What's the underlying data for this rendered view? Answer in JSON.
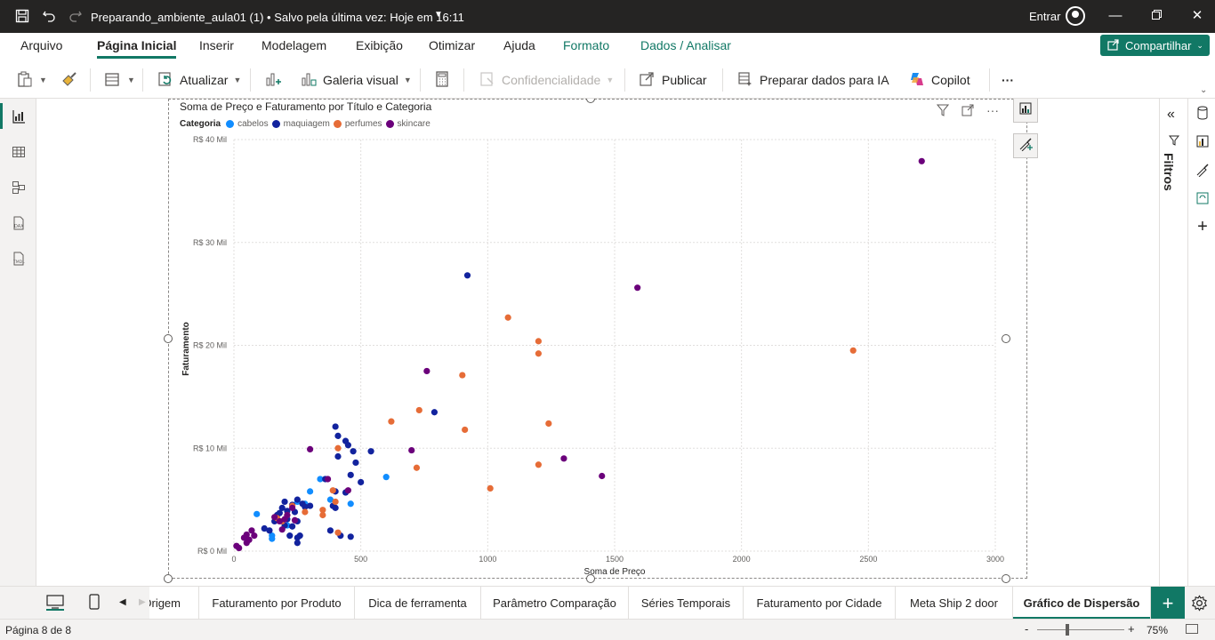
{
  "titlebar": {
    "doc_title": "Preparando_ambiente_aula01 (1) • Salvo pela última vez: Hoje em 16:11",
    "signin": "Entrar"
  },
  "menu": {
    "tabs": [
      "Arquivo",
      "Página Inicial",
      "Inserir",
      "Modelagem",
      "Exibição",
      "Otimizar",
      "Ajuda",
      "Formato",
      "Dados / Analisar"
    ],
    "active": "Página Inicial",
    "share": "Compartilhar"
  },
  "ribbon": {
    "refresh": "Atualizar",
    "visual_gallery": "Galeria visual",
    "sensitivity": "Confidencialidade",
    "publish": "Publicar",
    "prepare_ai": "Preparar dados para IA",
    "copilot": "Copilot",
    "more": "···"
  },
  "visual": {
    "title": "Soma de Preço e Faturamento por Título e Categoria",
    "legend_title": "Categoria"
  },
  "chart_data": {
    "type": "scatter",
    "title": "Soma de Preço e Faturamento por Título e Categoria",
    "xlabel": "Soma de Preço",
    "ylabel": "Faturamento",
    "xlim": [
      0,
      3000
    ],
    "ylim": [
      0,
      40
    ],
    "x_ticks": [
      0,
      500,
      1000,
      1500,
      2000,
      2500,
      3000
    ],
    "x_tick_labels": [
      "0",
      "500",
      "1000",
      "1500",
      "2000",
      "2500",
      "3000"
    ],
    "y_ticks": [
      0,
      10,
      20,
      30,
      40
    ],
    "y_tick_labels": [
      "R$ 0 Mil",
      "R$ 10 Mil",
      "R$ 20 Mil",
      "R$ 30 Mil",
      "R$ 40 Mil"
    ],
    "grid": true,
    "legend_position": "top-left",
    "series": [
      {
        "name": "cabelos",
        "color": "#118dff",
        "points": [
          [
            90,
            3.6
          ],
          [
            150,
            1.5
          ],
          [
            150,
            1.2
          ],
          [
            210,
            2.5
          ],
          [
            250,
            4.8
          ],
          [
            280,
            4.6
          ],
          [
            300,
            5.8
          ],
          [
            340,
            7
          ],
          [
            380,
            5
          ],
          [
            460,
            4.6
          ],
          [
            600,
            7.2
          ]
        ]
      },
      {
        "name": "maquiagem",
        "color": "#12239e",
        "points": [
          [
            120,
            2.2
          ],
          [
            140,
            2
          ],
          [
            160,
            2.9
          ],
          [
            170,
            3.5
          ],
          [
            180,
            3.7
          ],
          [
            190,
            4.2
          ],
          [
            200,
            4.8
          ],
          [
            200,
            2.5
          ],
          [
            210,
            3.9
          ],
          [
            210,
            3.1
          ],
          [
            220,
            1.5
          ],
          [
            230,
            4.5
          ],
          [
            230,
            2.4
          ],
          [
            240,
            3.8
          ],
          [
            250,
            5
          ],
          [
            250,
            2.9
          ],
          [
            250,
            1.3
          ],
          [
            250,
            0.8
          ],
          [
            260,
            1.5
          ],
          [
            270,
            4.6
          ],
          [
            280,
            4.3
          ],
          [
            300,
            4.4
          ],
          [
            360,
            7
          ],
          [
            380,
            2
          ],
          [
            390,
            4.4
          ],
          [
            400,
            12.1
          ],
          [
            400,
            5.8
          ],
          [
            400,
            4.2
          ],
          [
            410,
            11.2
          ],
          [
            410,
            9.2
          ],
          [
            420,
            1.5
          ],
          [
            440,
            5.7
          ],
          [
            440,
            10.7
          ],
          [
            450,
            10.3
          ],
          [
            460,
            1.4
          ],
          [
            460,
            7.4
          ],
          [
            470,
            9.7
          ],
          [
            480,
            8.6
          ],
          [
            500,
            6.7
          ],
          [
            540,
            9.7
          ],
          [
            790,
            13.5
          ],
          [
            920,
            26.8
          ]
        ]
      },
      {
        "name": "perfumes",
        "color": "#e66c37",
        "points": [
          [
            170,
            3.2
          ],
          [
            190,
            2.9
          ],
          [
            210,
            3.5
          ],
          [
            230,
            4.4
          ],
          [
            280,
            3.8
          ],
          [
            350,
            4
          ],
          [
            350,
            3.5
          ],
          [
            390,
            5.9
          ],
          [
            400,
            4.8
          ],
          [
            410,
            1.8
          ],
          [
            410,
            10
          ],
          [
            620,
            12.6
          ],
          [
            720,
            8.1
          ],
          [
            730,
            13.7
          ],
          [
            900,
            17.1
          ],
          [
            910,
            11.8
          ],
          [
            1010,
            6.1
          ],
          [
            1080,
            22.7
          ],
          [
            1200,
            8.4
          ],
          [
            1200,
            19.2
          ],
          [
            1200,
            20.4
          ],
          [
            1240,
            12.4
          ],
          [
            2440,
            19.5
          ]
        ]
      },
      {
        "name": "skincare",
        "color": "#6b007b",
        "points": [
          [
            10,
            0.5
          ],
          [
            20,
            0.3
          ],
          [
            40,
            1.3
          ],
          [
            50,
            1.6
          ],
          [
            50,
            0.8
          ],
          [
            60,
            1.1
          ],
          [
            70,
            2
          ],
          [
            80,
            1.5
          ],
          [
            160,
            3.3
          ],
          [
            180,
            2.9
          ],
          [
            190,
            2.1
          ],
          [
            200,
            3.1
          ],
          [
            210,
            3.5
          ],
          [
            230,
            4.2
          ],
          [
            240,
            3
          ],
          [
            300,
            9.9
          ],
          [
            370,
            7
          ],
          [
            450,
            5.9
          ],
          [
            700,
            9.8
          ],
          [
            760,
            17.5
          ],
          [
            1300,
            9
          ],
          [
            1450,
            7.3
          ],
          [
            1590,
            25.6
          ],
          [
            2710,
            37.9
          ]
        ]
      }
    ]
  },
  "page_tabs": {
    "tabs": [
      "Origem",
      "Faturamento por Produto",
      "Dica de ferramenta",
      "Parâmetro Comparação",
      "Séries Temporais",
      "Faturamento por Cidade",
      "Meta Ship 2 door",
      "Gráfico de Dispersão"
    ],
    "active_index": 7,
    "add": "+"
  },
  "status": {
    "page": "Página 8 de 8",
    "zoom_minus": "-",
    "zoom_plus": "+",
    "zoom": "75%",
    "zoom_fraction": 0.75
  },
  "right_pane": {
    "filters_label": "Filtros"
  }
}
